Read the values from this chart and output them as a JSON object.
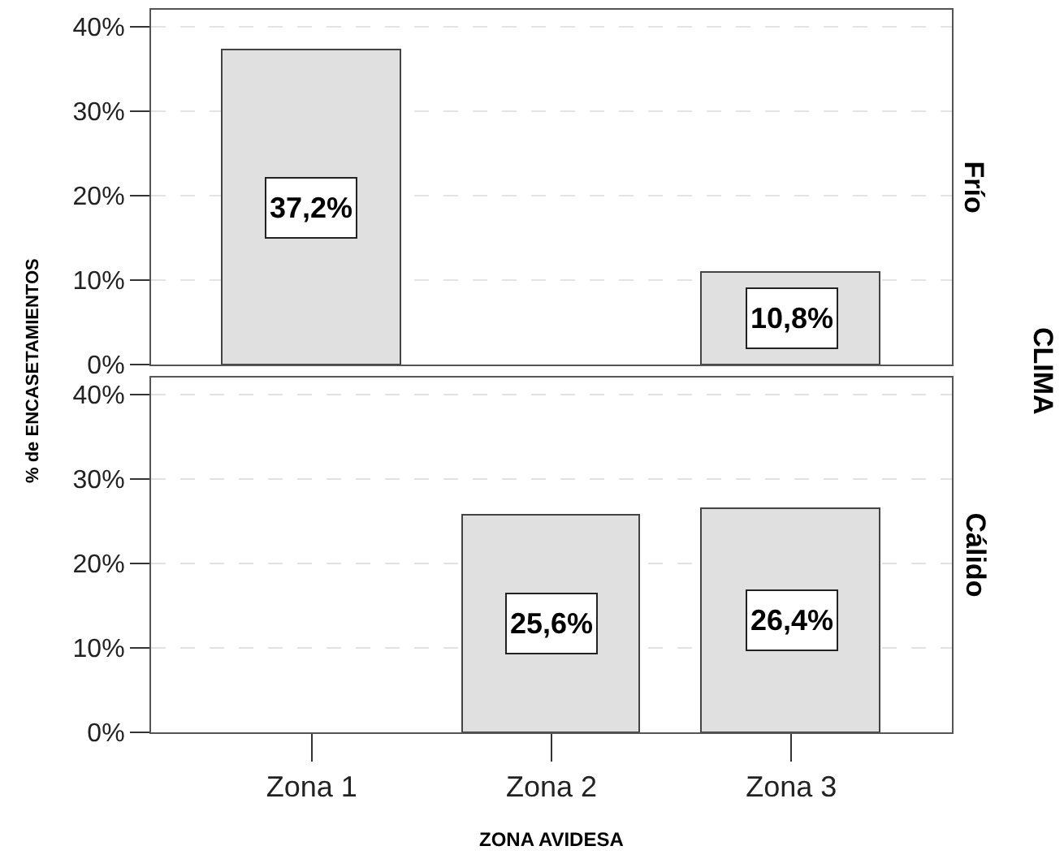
{
  "chart_data": [
    {
      "type": "bar",
      "title": "Frío",
      "categories": [
        null,
        null,
        null
      ],
      "values": [
        37.2,
        null,
        10.8
      ],
      "value_labels": [
        "37,2%",
        null,
        "10,8%"
      ],
      "color": "#e0e0e0",
      "ylabel": "% de ENCASETAMIENTOS",
      "annotations": [
        "CLIMA"
      ],
      "ylim": [
        0,
        42
      ],
      "yticks": [
        {
          "value": 0,
          "label": "0%"
        },
        {
          "value": 10,
          "label": "10%"
        },
        {
          "value": 20,
          "label": "20%"
        },
        {
          "value": 30,
          "label": "30%"
        },
        {
          "value": 40,
          "label": "40%"
        }
      ],
      "grid": "y",
      "tick_labels": "y"
    },
    {
      "type": "bar",
      "title": "Cálido",
      "categories": [
        "Zona 1",
        "Zona 2",
        "Zona 3"
      ],
      "values": [
        null,
        25.6,
        26.4
      ],
      "value_labels": [
        null,
        "25,6%",
        "26,4%"
      ],
      "color": "#e0e0e0",
      "xlabel": "ZONA AVIDESA",
      "ylim": [
        0,
        42
      ],
      "yticks": [
        {
          "value": 0,
          "label": "0%"
        },
        {
          "value": 10,
          "label": "10%"
        },
        {
          "value": 20,
          "label": "20%"
        },
        {
          "value": 30,
          "label": "30%"
        },
        {
          "value": 40,
          "label": "40%"
        }
      ],
      "grid": "y"
    }
  ]
}
